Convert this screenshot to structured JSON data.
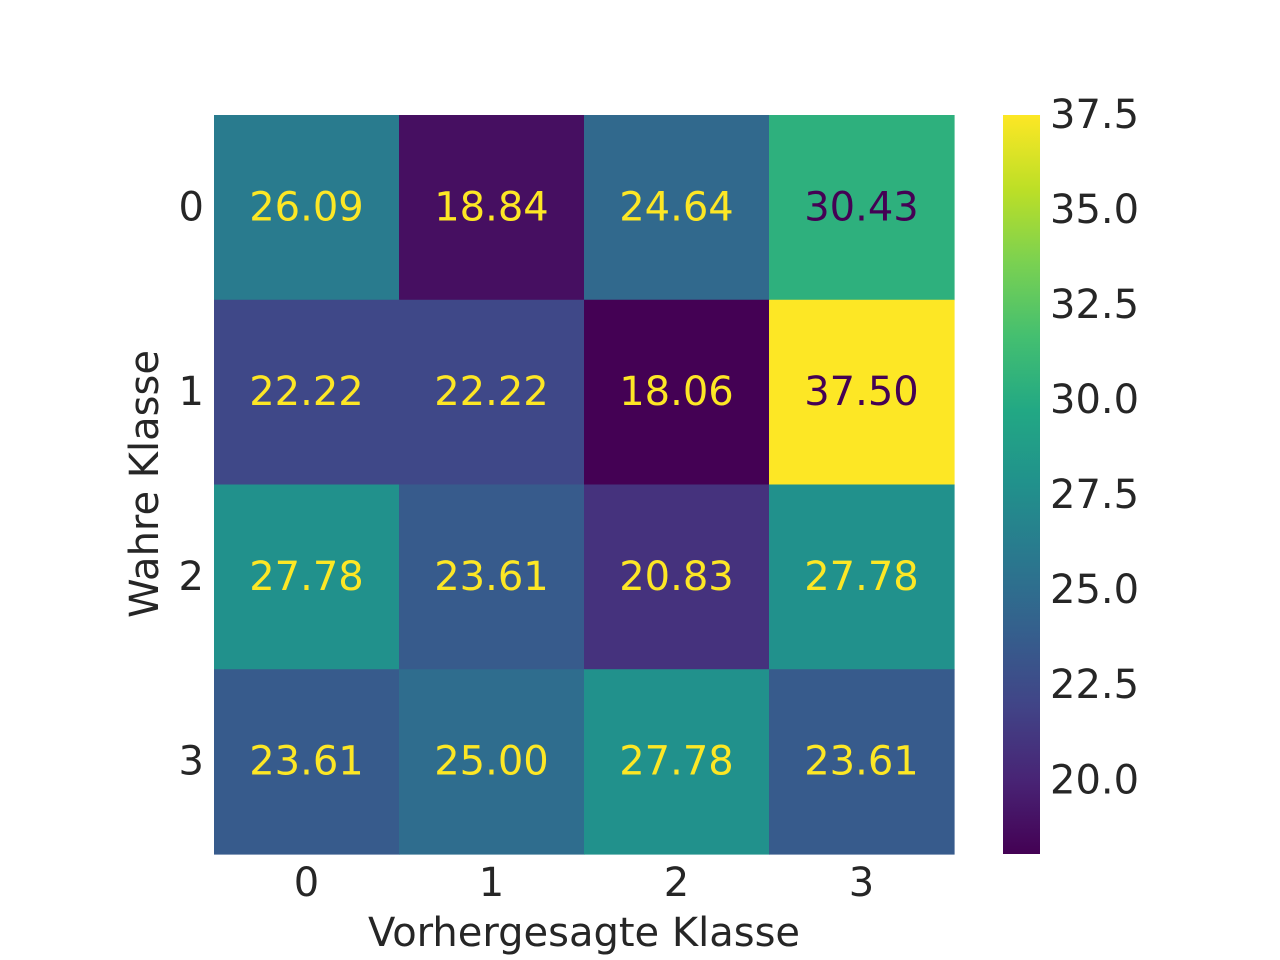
{
  "chart_data": {
    "type": "heatmap",
    "title": "",
    "xlabel": "Vorhergesagte Klasse",
    "ylabel": "Wahre Klasse",
    "x_categories": [
      "0",
      "1",
      "2",
      "3"
    ],
    "y_categories": [
      "0",
      "1",
      "2",
      "3"
    ],
    "values": [
      [
        26.09,
        18.84,
        24.64,
        30.43
      ],
      [
        22.22,
        22.22,
        18.06,
        37.5
      ],
      [
        27.78,
        23.61,
        20.83,
        27.78
      ],
      [
        23.61,
        25.0,
        27.78,
        23.61
      ]
    ],
    "cell_labels": [
      [
        "26.09",
        "18.84",
        "24.64",
        "30.43"
      ],
      [
        "22.22",
        "22.22",
        "18.06",
        "37.50"
      ],
      [
        "27.78",
        "23.61",
        "20.83",
        "27.78"
      ],
      [
        "23.61",
        "25.00",
        "27.78",
        "23.61"
      ]
    ],
    "colormap": "viridis",
    "vmin": 18.06,
    "vmax": 37.5,
    "colorbar": {
      "ticks": [
        20.0,
        22.5,
        25.0,
        27.5,
        30.0,
        32.5,
        35.0,
        37.5
      ],
      "tick_labels": [
        "20.0",
        "22.5",
        "25.0",
        "27.5",
        "30.0",
        "32.5",
        "35.0",
        "37.5"
      ]
    },
    "grid": false
  }
}
